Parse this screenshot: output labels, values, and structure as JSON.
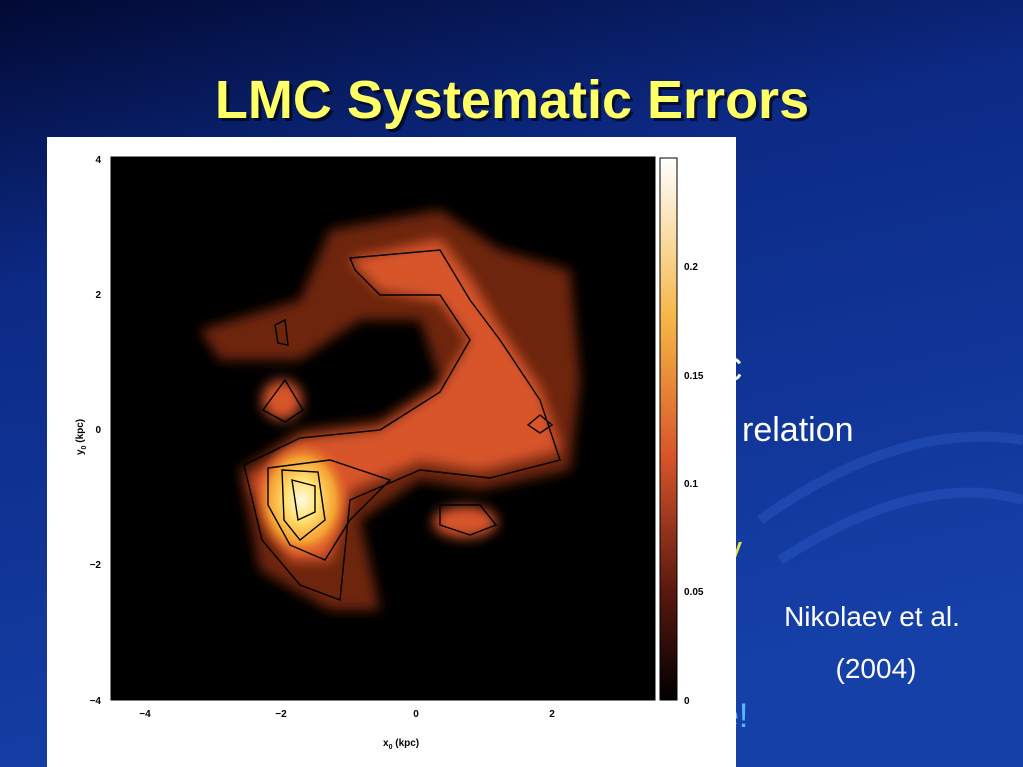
{
  "slide": {
    "title": "LMC Systematic Errors",
    "body": [
      {
        "text": "C"
      },
      {
        "text": "relation"
      },
      {
        "text": "y"
      },
      {
        "text": "e!"
      }
    ],
    "caption": {
      "line1": "Nikolaev et al.",
      "line2": "(2004)"
    }
  },
  "figure": {
    "y_ticks": [
      "4",
      "2",
      "0",
      "−2",
      "−4"
    ],
    "x_ticks": [
      "−4",
      "−2",
      "0",
      "2"
    ],
    "colorbar_ticks": [
      "0.2",
      "0.15",
      "0.1",
      "0.05",
      "0"
    ],
    "x_label": {
      "main": "x",
      "sub": "0",
      "unit": " (kpc)"
    },
    "y_label": {
      "main": "y",
      "sub": "0",
      "unit": " (kpc)"
    }
  }
}
